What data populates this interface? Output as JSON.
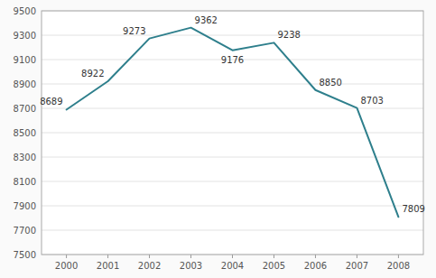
{
  "chart_data": {
    "type": "line",
    "x": [
      2000,
      2001,
      2002,
      2003,
      2004,
      2005,
      2006,
      2007,
      2008
    ],
    "values": [
      8689,
      8922,
      9273,
      9362,
      9176,
      9238,
      8850,
      8703,
      7809
    ],
    "color": "#2e7f8c",
    "xlim": [
      1999.4,
      2008.6
    ],
    "xticks": [
      2000,
      2001,
      2002,
      2003,
      2004,
      2005,
      2006,
      2007,
      2008
    ],
    "ylim": [
      7500,
      9500
    ],
    "yticks": [
      7500,
      7700,
      7900,
      8100,
      8300,
      8500,
      8700,
      8900,
      9100,
      9300,
      9500
    ],
    "grid": true,
    "data_labels": true
  }
}
